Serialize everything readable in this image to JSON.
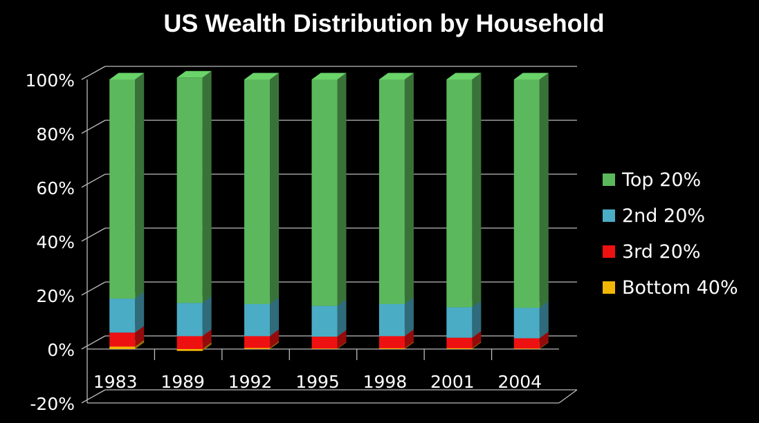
{
  "chart_data": {
    "type": "bar",
    "stacked": true,
    "three_d": true,
    "title": "US Wealth Distribution by Household",
    "xlabel": "",
    "ylabel": "",
    "ylim": [
      -20,
      100
    ],
    "yticks": [
      "100%",
      "80%",
      "60%",
      "40%",
      "20%",
      "0%",
      "-20%"
    ],
    "ytick_values": [
      100,
      80,
      60,
      40,
      20,
      0,
      -20
    ],
    "grid": true,
    "legend_position": "right",
    "categories": [
      "1983",
      "1989",
      "1992",
      "1995",
      "1998",
      "2001",
      "2004"
    ],
    "series": [
      {
        "name": "Bottom 40%",
        "color": "#f2b705",
        "values": [
          0.9,
          -0.7,
          0.4,
          0.2,
          0.3,
          0.3,
          0.2
        ]
      },
      {
        "name": "3rd 20%",
        "color": "#ee1111",
        "values": [
          5.2,
          4.8,
          4.4,
          4.4,
          4.5,
          3.9,
          3.8
        ]
      },
      {
        "name": "2nd 20%",
        "color": "#4bacc6",
        "values": [
          12.6,
          12.3,
          11.9,
          11.4,
          11.9,
          11.3,
          11.3
        ]
      },
      {
        "name": "Top 20%",
        "color": "#5cb85c",
        "values": [
          81.3,
          83.6,
          83.3,
          84.0,
          83.3,
          84.5,
          84.7
        ]
      }
    ],
    "legend_order": [
      "Top 20%",
      "2nd 20%",
      "3rd 20%",
      "Bottom 40%"
    ]
  }
}
